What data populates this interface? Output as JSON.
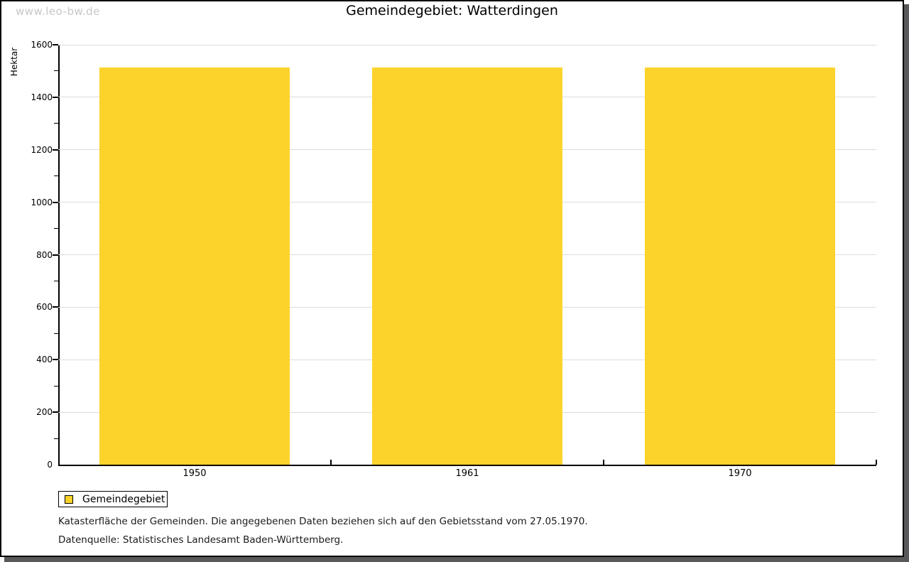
{
  "watermark": "www.leo-bw.de",
  "header": {
    "title": "Gemeindegebiet: Watterdingen"
  },
  "chart_data": {
    "type": "bar",
    "title": "Gemeindegebiet: Watterdingen",
    "categories": [
      "1950",
      "1961",
      "1970"
    ],
    "series": [
      {
        "name": "Gemeindegebiet",
        "values": [
          1513,
          1513,
          1513
        ]
      }
    ],
    "xlabel": "",
    "ylabel": "Hektar",
    "ylim": [
      0,
      1600
    ],
    "ytick_step": 200,
    "ytick_minor_step": 100,
    "ytick_labels": [
      "0",
      "200",
      "400",
      "600",
      "800",
      "1000",
      "1200",
      "1400",
      "1600"
    ],
    "grid": true,
    "legend_position": "bottom-left",
    "bar_color": "#fcd32b"
  },
  "legend": {
    "label": "Gemeindegebiet"
  },
  "footnotes": {
    "line1": "Katasterfläche der Gemeinden. Die angegebenen Daten beziehen sich auf den Gebietsstand vom 27.05.1970.",
    "line2": "Datenquelle: Statistisches Landesamt Baden-Württemberg."
  },
  "colors": {
    "bar": "#fcd32b",
    "grid": "#dcdcdc",
    "axis": "#000000",
    "watermark": "#c7c7c7",
    "frame_shadow": "#58585a"
  }
}
